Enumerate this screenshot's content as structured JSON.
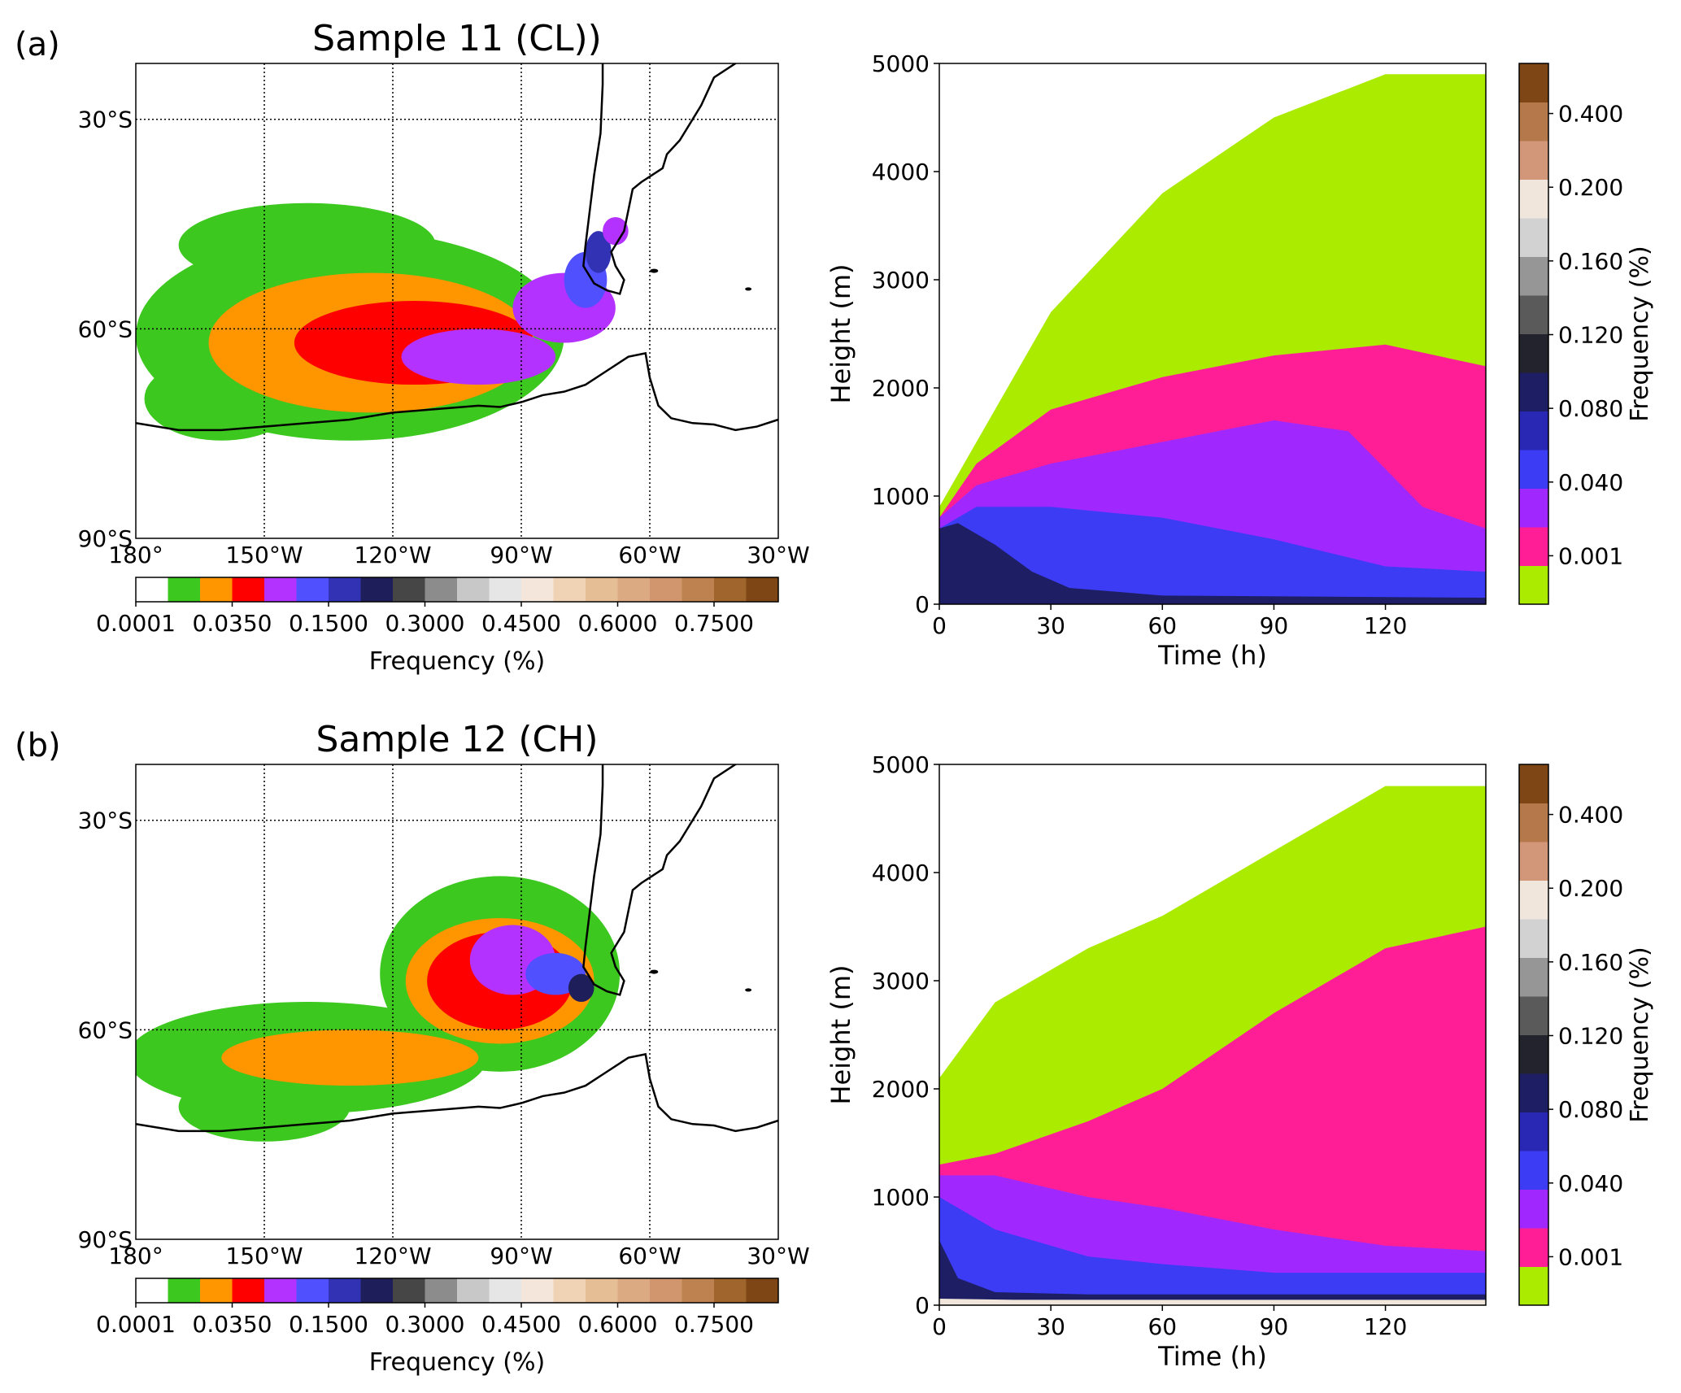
{
  "colors": {
    "map_levels": [
      "#ffffff",
      "#3cc81e",
      "#ff9600",
      "#ff0000",
      "#b432ff",
      "#5050ff",
      "#3232b4",
      "#1e1e5a",
      "#464646",
      "#8c8c8c",
      "#c8c8c8",
      "#e6e6e6",
      "#f5e6dc",
      "#f0d2b4",
      "#e6be96",
      "#dcaa82",
      "#d2966e",
      "#be8250",
      "#a0642d",
      "#7d4614"
    ],
    "height_levels": [
      "#aaeb00",
      "#ff1e96",
      "#a028ff",
      "#3c3cf5",
      "#2828b4",
      "#1e1e64",
      "#23232d",
      "#5a5a5a",
      "#969696",
      "#d2d2d2",
      "#f0e6dc",
      "#d29678",
      "#b4784b",
      "#7d4614"
    ],
    "coast": "#000000",
    "grid": "#000000"
  },
  "panels": [
    {
      "label": "(a)",
      "title": "Sample 11 (CL))",
      "map_colorbar": {
        "ticks": [
          "0.0001",
          "0.0350",
          "0.1500",
          "0.3000",
          "0.4500",
          "0.6000",
          "0.7500"
        ],
        "label": "Frequency (%)"
      },
      "height_colorbar": {
        "ticks": [
          "0.400",
          "0.200",
          "0.160",
          "0.120",
          "0.080",
          "0.040",
          "0.001"
        ],
        "label": "Frequency (%)"
      }
    },
    {
      "label": "(b)",
      "title": "Sample 12 (CH)",
      "map_colorbar": {
        "ticks": [
          "0.0001",
          "0.0350",
          "0.1500",
          "0.3000",
          "0.4500",
          "0.6000",
          "0.7500"
        ],
        "label": "Frequency (%)"
      },
      "height_colorbar": {
        "ticks": [
          "0.400",
          "0.200",
          "0.160",
          "0.120",
          "0.080",
          "0.040",
          "0.001"
        ],
        "label": "Frequency (%)"
      }
    }
  ],
  "chart_data": [
    {
      "type": "heatmap",
      "panel": "(a) map",
      "title": "Sample 11 (CL))",
      "x_ticks": [
        "180°",
        "150°W",
        "120°W",
        "90°W",
        "60°W",
        "30°W"
      ],
      "x_values": [
        -180,
        -150,
        -120,
        -90,
        -60,
        -30
      ],
      "y_ticks": [
        "30°S",
        "60°S",
        "90°S"
      ],
      "y_values": [
        -30,
        -60,
        -90
      ],
      "xlim": [
        -180,
        -30
      ],
      "ylim": [
        -90,
        -22
      ],
      "grid": true,
      "colorbar_label": "Frequency (%)",
      "colorbar_ticks": [
        0.0001,
        0.035,
        0.15,
        0.3,
        0.45,
        0.6,
        0.75
      ],
      "blobs": [
        {
          "lon": -130,
          "lat": -61,
          "rx": 50,
          "ry": 15,
          "level": 1
        },
        {
          "lon": -140,
          "lat": -48,
          "rx": 30,
          "ry": 6,
          "level": 1
        },
        {
          "lon": -110,
          "lat": -56,
          "rx": 25,
          "ry": 5,
          "level": 1
        },
        {
          "lon": -160,
          "lat": -70,
          "rx": 18,
          "ry": 6,
          "level": 1
        },
        {
          "lon": -125,
          "lat": -62,
          "rx": 38,
          "ry": 10,
          "level": 2
        },
        {
          "lon": -115,
          "lat": -62,
          "rx": 28,
          "ry": 6,
          "level": 3
        },
        {
          "lon": -100,
          "lat": -64,
          "rx": 18,
          "ry": 4,
          "level": 4
        },
        {
          "lon": -80,
          "lat": -57,
          "rx": 12,
          "ry": 5,
          "level": 4
        },
        {
          "lon": -75,
          "lat": -53,
          "rx": 5,
          "ry": 4,
          "level": 5
        },
        {
          "lon": -72,
          "lat": -49,
          "rx": 3,
          "ry": 3,
          "level": 6
        },
        {
          "lon": -68,
          "lat": -46,
          "rx": 3,
          "ry": 2,
          "level": 4
        }
      ]
    },
    {
      "type": "heatmap",
      "panel": "(a) height-time",
      "xlabel": "Time (h)",
      "ylabel": "Height (m)",
      "x_ticks": [
        0,
        30,
        60,
        90,
        120
      ],
      "xlim": [
        0,
        147
      ],
      "y_ticks": [
        0,
        1000,
        2000,
        3000,
        4000,
        5000
      ],
      "ylim": [
        0,
        5000
      ],
      "colorbar_label": "Frequency (%)",
      "colorbar_ticks": [
        0.001,
        0.04,
        0.08,
        0.12,
        0.16,
        0.2,
        0.4
      ],
      "bands": [
        {
          "level": 0,
          "top": [
            [
              0,
              900
            ],
            [
              10,
              1500
            ],
            [
              30,
              2700
            ],
            [
              60,
              3800
            ],
            [
              90,
              4500
            ],
            [
              120,
              4900
            ],
            [
              147,
              4900
            ]
          ]
        },
        {
          "level": 1,
          "top": [
            [
              0,
              800
            ],
            [
              10,
              1300
            ],
            [
              30,
              1800
            ],
            [
              60,
              2100
            ],
            [
              90,
              2300
            ],
            [
              120,
              2400
            ],
            [
              147,
              2200
            ]
          ]
        },
        {
          "level": 2,
          "top": [
            [
              0,
              800
            ],
            [
              10,
              1100
            ],
            [
              30,
              1300
            ],
            [
              60,
              1500
            ],
            [
              90,
              1700
            ],
            [
              110,
              1600
            ],
            [
              130,
              900
            ],
            [
              147,
              700
            ]
          ]
        },
        {
          "level": 3,
          "top": [
            [
              0,
              700
            ],
            [
              10,
              900
            ],
            [
              30,
              900
            ],
            [
              60,
              800
            ],
            [
              90,
              600
            ],
            [
              120,
              350
            ],
            [
              147,
              300
            ]
          ]
        },
        {
          "level": 5,
          "top": [
            [
              0,
              700
            ],
            [
              5,
              750
            ],
            [
              15,
              550
            ],
            [
              25,
              300
            ],
            [
              35,
              150
            ],
            [
              60,
              80
            ],
            [
              147,
              60
            ]
          ]
        }
      ]
    },
    {
      "type": "heatmap",
      "panel": "(b) map",
      "title": "Sample 12 (CH)",
      "x_ticks": [
        "180°",
        "150°W",
        "120°W",
        "90°W",
        "60°W",
        "30°W"
      ],
      "x_values": [
        -180,
        -150,
        -120,
        -90,
        -60,
        -30
      ],
      "y_ticks": [
        "30°S",
        "60°S",
        "90°S"
      ],
      "y_values": [
        -30,
        -60,
        -90
      ],
      "xlim": [
        -180,
        -30
      ],
      "ylim": [
        -90,
        -22
      ],
      "grid": true,
      "colorbar_label": "Frequency (%)",
      "colorbar_ticks": [
        0.0001,
        0.035,
        0.15,
        0.3,
        0.45,
        0.6,
        0.75
      ],
      "blobs": [
        {
          "lon": -140,
          "lat": -64,
          "rx": 42,
          "ry": 8,
          "level": 1
        },
        {
          "lon": -95,
          "lat": -52,
          "rx": 28,
          "ry": 14,
          "level": 1
        },
        {
          "lon": -150,
          "lat": -71,
          "rx": 20,
          "ry": 5,
          "level": 1
        },
        {
          "lon": -130,
          "lat": -64,
          "rx": 30,
          "ry": 4,
          "level": 2
        },
        {
          "lon": -95,
          "lat": -53,
          "rx": 22,
          "ry": 9,
          "level": 2
        },
        {
          "lon": -95,
          "lat": -53,
          "rx": 17,
          "ry": 7,
          "level": 3
        },
        {
          "lon": -92,
          "lat": -50,
          "rx": 10,
          "ry": 5,
          "level": 4
        },
        {
          "lon": -82,
          "lat": -52,
          "rx": 7,
          "ry": 3,
          "level": 5
        },
        {
          "lon": -76,
          "lat": -54,
          "rx": 3,
          "ry": 2,
          "level": 7
        }
      ]
    },
    {
      "type": "heatmap",
      "panel": "(b) height-time",
      "xlabel": "Time (h)",
      "ylabel": "Height (m)",
      "x_ticks": [
        0,
        30,
        60,
        90,
        120
      ],
      "xlim": [
        0,
        147
      ],
      "y_ticks": [
        0,
        1000,
        2000,
        3000,
        4000,
        5000
      ],
      "ylim": [
        0,
        5000
      ],
      "colorbar_label": "Frequency (%)",
      "colorbar_ticks": [
        0.001,
        0.04,
        0.08,
        0.12,
        0.16,
        0.2,
        0.4
      ],
      "bands": [
        {
          "level": 0,
          "top": [
            [
              0,
              2100
            ],
            [
              15,
              2800
            ],
            [
              40,
              3300
            ],
            [
              60,
              3600
            ],
            [
              90,
              4200
            ],
            [
              120,
              4800
            ],
            [
              147,
              4800
            ]
          ]
        },
        {
          "level": 1,
          "top": [
            [
              0,
              1300
            ],
            [
              15,
              1400
            ],
            [
              40,
              1700
            ],
            [
              60,
              2000
            ],
            [
              90,
              2700
            ],
            [
              120,
              3300
            ],
            [
              147,
              3500
            ]
          ]
        },
        {
          "level": 2,
          "top": [
            [
              0,
              1200
            ],
            [
              15,
              1200
            ],
            [
              40,
              1000
            ],
            [
              60,
              900
            ],
            [
              90,
              700
            ],
            [
              120,
              550
            ],
            [
              147,
              500
            ]
          ]
        },
        {
          "level": 3,
          "top": [
            [
              0,
              1000
            ],
            [
              15,
              700
            ],
            [
              40,
              450
            ],
            [
              60,
              380
            ],
            [
              90,
              300
            ],
            [
              120,
              300
            ],
            [
              147,
              300
            ]
          ]
        },
        {
          "level": 5,
          "top": [
            [
              0,
              600
            ],
            [
              5,
              250
            ],
            [
              15,
              120
            ],
            [
              40,
              100
            ],
            [
              90,
              100
            ],
            [
              147,
              100
            ]
          ]
        },
        {
          "level": 10,
          "top": [
            [
              0,
              60
            ],
            [
              20,
              50
            ],
            [
              147,
              50
            ]
          ]
        }
      ]
    }
  ]
}
